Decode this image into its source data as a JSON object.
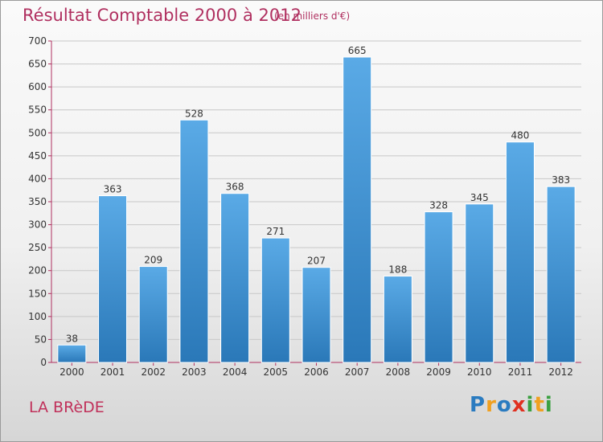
{
  "header": {
    "title": "Résultat Comptable 2000 à 2012",
    "subtitle": "(en milliers d'€)"
  },
  "footer": {
    "town": "LA BRèDE",
    "logo_letters": [
      {
        "char": "P",
        "color": "#2a7bc0"
      },
      {
        "char": "r",
        "color": "#f0a020"
      },
      {
        "char": "o",
        "color": "#2a7bc0"
      },
      {
        "char": "x",
        "color": "#e03020"
      },
      {
        "char": "i",
        "color": "#3aa040"
      },
      {
        "char": "t",
        "color": "#f0a020"
      },
      {
        "char": "i",
        "color": "#3aa040"
      }
    ]
  },
  "chart_data": {
    "type": "bar",
    "title": "Résultat Comptable 2000 à 2012",
    "subtitle": "(en milliers d'€)",
    "categories": [
      "2000",
      "2001",
      "2002",
      "2003",
      "2004",
      "2005",
      "2006",
      "2007",
      "2008",
      "2009",
      "2010",
      "2011",
      "2012"
    ],
    "values": [
      38,
      363,
      209,
      528,
      368,
      271,
      207,
      665,
      188,
      328,
      345,
      480,
      383
    ],
    "ylim": [
      0,
      700
    ],
    "yticks": [
      0,
      50,
      100,
      150,
      200,
      250,
      300,
      350,
      400,
      450,
      500,
      550,
      600,
      650,
      700
    ],
    "grid": true,
    "bar_color_top": "#5aaae6",
    "bar_color_bottom": "#2a78b8"
  }
}
